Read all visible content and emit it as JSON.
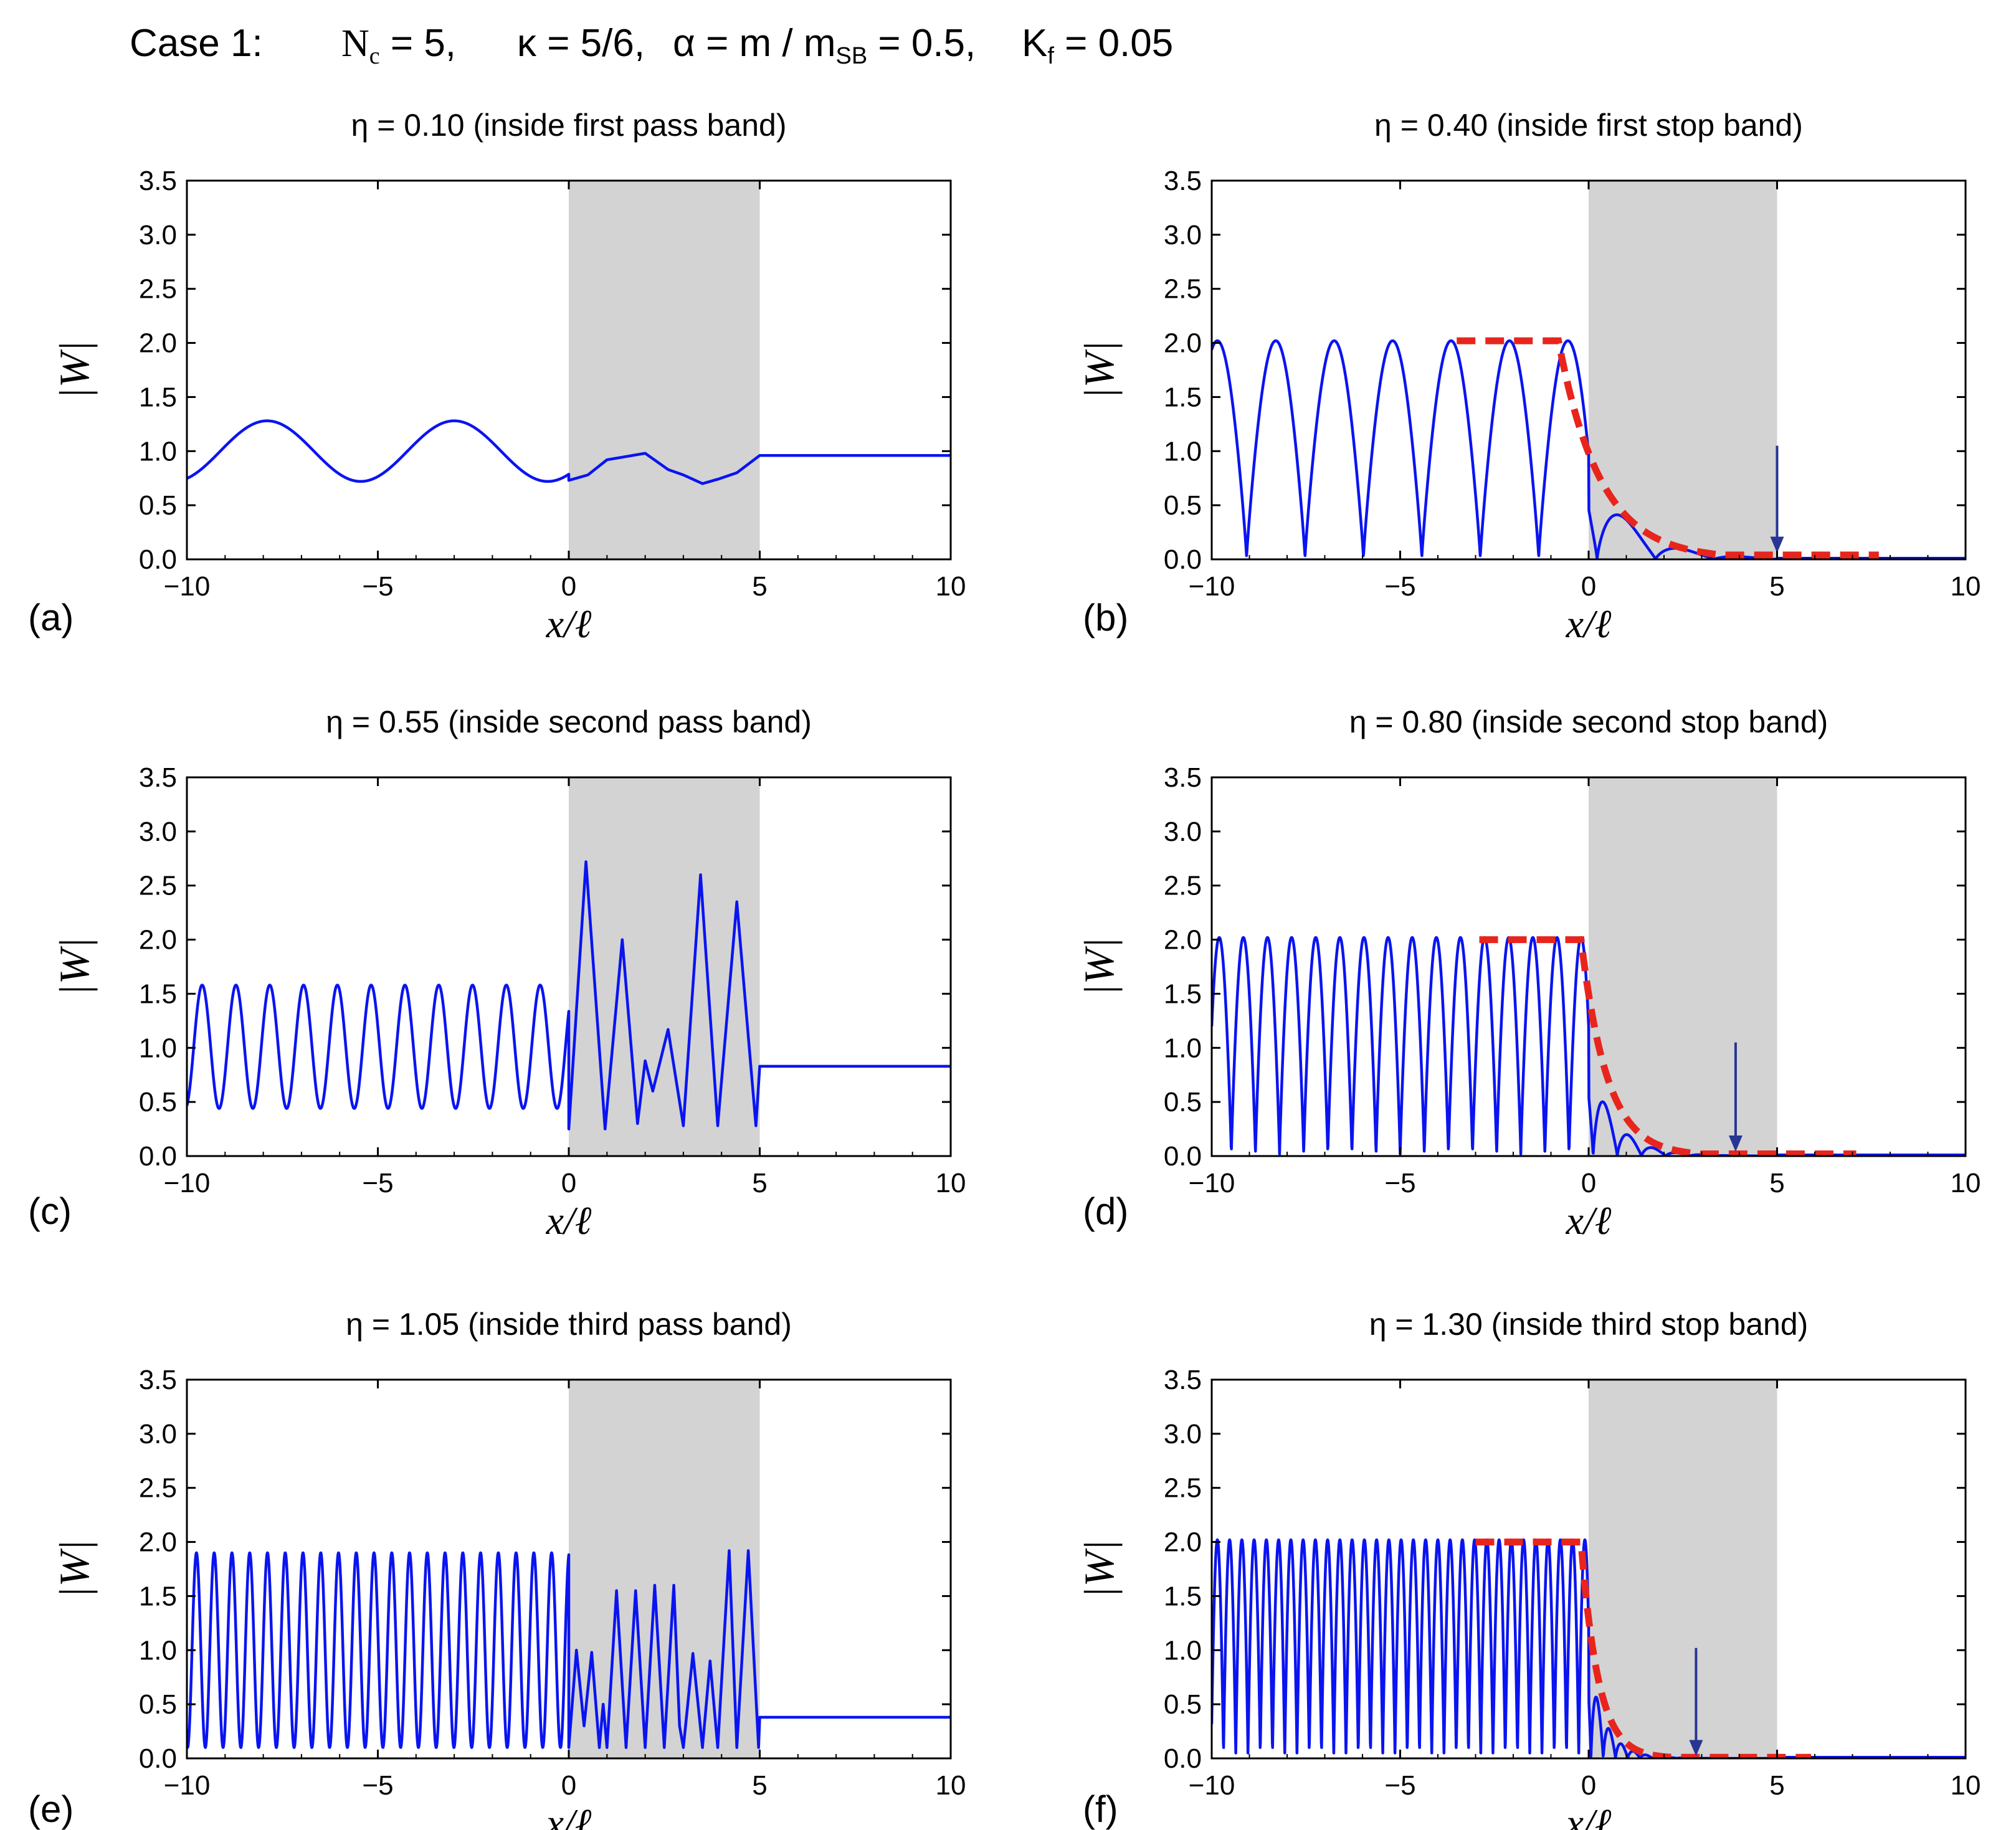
{
  "figure": {
    "case_label": "Case 1:",
    "params": {
      "Nc": {
        "sym": "N",
        "sub": "c",
        "val": " = 5,"
      },
      "kappa": {
        "text": "κ = 5/6,"
      },
      "alpha": {
        "pre": "α = m / m",
        "sub": "SB",
        "val": " = 0.5,"
      },
      "Kf": {
        "sym": "K",
        "sub": "f",
        "val": " = 0.05"
      }
    }
  },
  "colors": {
    "curve": "#0a14f0",
    "envelope": "#e8251d",
    "arrow": "#283593",
    "shade": "#d3d3d3",
    "frame": "#000000"
  },
  "chart_data": [
    {
      "id": "a",
      "type": "line",
      "panel_label": "(a)",
      "title": "η = 0.10 (inside first pass band)",
      "xlabel": "x/ℓ",
      "ylabel": "|W|",
      "xlim": [
        -10,
        10
      ],
      "ylim": [
        0,
        3.5
      ],
      "xticks": [
        -10,
        -5,
        0,
        5,
        10
      ],
      "xtick_labels": [
        "−10",
        "−5",
        "0",
        "5",
        "10"
      ],
      "yticks": [
        0,
        0.5,
        1,
        1.5,
        2,
        2.5,
        3,
        3.5
      ],
      "ytick_labels": [
        "0.0",
        "0.5",
        "1.0",
        "1.5",
        "2.0",
        "2.5",
        "3.0",
        "3.5"
      ],
      "shaded_region": [
        0,
        5
      ],
      "series": [
        {
          "name": "|W|",
          "kind": "left_sin",
          "x_range": [
            -10,
            0
          ],
          "mean": 1.0,
          "amplitude": 0.28,
          "peak_spacing": 4.9,
          "first_peak": -7.9,
          "right_points": [
            [
              0,
              0.73
            ],
            [
              0.5,
              0.78
            ],
            [
              1.0,
              0.92
            ],
            [
              2.0,
              0.98
            ],
            [
              2.6,
              0.83
            ],
            [
              3.0,
              0.78
            ],
            [
              3.5,
              0.7
            ],
            [
              3.9,
              0.74
            ],
            [
              4.4,
              0.8
            ],
            [
              5.0,
              0.96
            ],
            [
              10,
              0.96
            ]
          ]
        }
      ],
      "envelope": null,
      "arrow": null
    },
    {
      "id": "b",
      "type": "line",
      "panel_label": "(b)",
      "title": "η = 0.40 (inside first stop band)",
      "xlabel": "x/ℓ",
      "ylabel": "|W|",
      "xlim": [
        -10,
        10
      ],
      "ylim": [
        0,
        3.5
      ],
      "xticks": [
        -10,
        -5,
        0,
        5,
        10
      ],
      "xtick_labels": [
        "−10",
        "−5",
        "0",
        "5",
        "10"
      ],
      "yticks": [
        0,
        0.5,
        1,
        1.5,
        2,
        2.5,
        3,
        3.5
      ],
      "ytick_labels": [
        "0.0",
        "0.5",
        "1.0",
        "1.5",
        "2.0",
        "2.5",
        "3.0",
        "3.5"
      ],
      "shaded_region": [
        0,
        5
      ],
      "series": [
        {
          "name": "|W|",
          "kind": "stop_band",
          "x_range": [
            -10,
            10
          ],
          "peak": 2.0,
          "period": 1.55,
          "phase_x": -0.55,
          "decay_rate": 0.9
        }
      ],
      "envelope": {
        "x_flat": [
          -3.5,
          -0.8
        ],
        "level": 2.02,
        "decay_rate": 0.9,
        "x_end": 7.7,
        "tail": 0.04
      },
      "arrow": {
        "x": 5.0,
        "y_top": 1.05,
        "y_bottom": 0.06
      }
    },
    {
      "id": "c",
      "type": "line",
      "panel_label": "(c)",
      "title": "η = 0.55 (inside second pass band)",
      "xlabel": "x/ℓ",
      "ylabel": "|W|",
      "xlim": [
        -10,
        10
      ],
      "ylim": [
        0,
        3.5
      ],
      "xticks": [
        -10,
        -5,
        0,
        5,
        10
      ],
      "xtick_labels": [
        "−10",
        "−5",
        "0",
        "5",
        "10"
      ],
      "yticks": [
        0,
        0.5,
        1,
        1.5,
        2,
        2.5,
        3,
        3.5
      ],
      "ytick_labels": [
        "0.0",
        "0.5",
        "1.0",
        "1.5",
        "2.0",
        "2.5",
        "3.0",
        "3.5"
      ],
      "shaded_region": [
        0,
        5
      ],
      "series": [
        {
          "name": "|W|",
          "kind": "left_sin",
          "x_range": [
            -10,
            0
          ],
          "mean": 1.01,
          "amplitude": 0.57,
          "peak_spacing": 0.885,
          "first_peak": -9.6,
          "right_points": [
            [
              0,
              0.25
            ],
            [
              0.45,
              2.72
            ],
            [
              0.95,
              0.25
            ],
            [
              1.4,
              2.0
            ],
            [
              1.8,
              0.3
            ],
            [
              2.0,
              0.88
            ],
            [
              2.2,
              0.6
            ],
            [
              2.6,
              1.17
            ],
            [
              3.0,
              0.28
            ],
            [
              3.45,
              2.6
            ],
            [
              3.9,
              0.28
            ],
            [
              4.4,
              2.35
            ],
            [
              4.9,
              0.28
            ],
            [
              5.0,
              0.83
            ],
            [
              10,
              0.83
            ]
          ]
        }
      ],
      "envelope": null,
      "arrow": null
    },
    {
      "id": "d",
      "type": "line",
      "panel_label": "(d)",
      "title": "η = 0.80 (inside second stop band)",
      "xlabel": "x/ℓ",
      "ylabel": "|W|",
      "xlim": [
        -10,
        10
      ],
      "ylim": [
        0,
        3.5
      ],
      "xticks": [
        -10,
        -5,
        0,
        5,
        10
      ],
      "xtick_labels": [
        "−10",
        "−5",
        "0",
        "5",
        "10"
      ],
      "yticks": [
        0,
        0.5,
        1,
        1.5,
        2,
        2.5,
        3,
        3.5
      ],
      "ytick_labels": [
        "0.0",
        "0.5",
        "1.0",
        "1.5",
        "2.0",
        "2.5",
        "3.0",
        "3.5"
      ],
      "shaded_region": [
        0,
        5
      ],
      "series": [
        {
          "name": "|W|",
          "kind": "stop_band",
          "x_range": [
            -10,
            10
          ],
          "peak": 2.0,
          "period": 0.64,
          "phase_x": -0.2,
          "decay_rate": 1.45
        }
      ],
      "envelope": {
        "x_flat": [
          -2.9,
          -0.2
        ],
        "level": 2.0,
        "decay_rate": 1.45,
        "x_end": 7.1,
        "tail": 0.02
      },
      "arrow": {
        "x": 3.9,
        "y_top": 1.05,
        "y_bottom": 0.04
      }
    },
    {
      "id": "e",
      "type": "line",
      "panel_label": "(e)",
      "title": "η = 1.05 (inside third pass band)",
      "xlabel": "x/ℓ",
      "ylabel": "|W|",
      "xlim": [
        -10,
        10
      ],
      "ylim": [
        0,
        3.5
      ],
      "xticks": [
        -10,
        -5,
        0,
        5,
        10
      ],
      "xtick_labels": [
        "−10",
        "−5",
        "0",
        "5",
        "10"
      ],
      "yticks": [
        0,
        0.5,
        1,
        1.5,
        2,
        2.5,
        3,
        3.5
      ],
      "ytick_labels": [
        "0.0",
        "0.5",
        "1.0",
        "1.5",
        "2.0",
        "2.5",
        "3.0",
        "3.5"
      ],
      "shaded_region": [
        0,
        5
      ],
      "series": [
        {
          "name": "|W|",
          "kind": "left_sin",
          "x_range": [
            -10,
            0
          ],
          "mean": 1.0,
          "amplitude": 0.9,
          "peak_spacing": 0.465,
          "first_peak": -9.75,
          "right_points": [
            [
              0,
              0.1
            ],
            [
              0.2,
              1.0
            ],
            [
              0.4,
              0.3
            ],
            [
              0.6,
              0.98
            ],
            [
              0.8,
              0.1
            ],
            [
              0.9,
              0.5
            ],
            [
              1.0,
              0.1
            ],
            [
              1.25,
              1.55
            ],
            [
              1.5,
              0.1
            ],
            [
              1.75,
              1.55
            ],
            [
              2.0,
              0.1
            ],
            [
              2.25,
              1.6
            ],
            [
              2.5,
              0.1
            ],
            [
              2.75,
              1.6
            ],
            [
              2.9,
              0.3
            ],
            [
              3.0,
              0.1
            ],
            [
              3.25,
              0.97
            ],
            [
              3.5,
              0.1
            ],
            [
              3.7,
              0.9
            ],
            [
              3.9,
              0.1
            ],
            [
              4.2,
              1.92
            ],
            [
              4.4,
              0.1
            ],
            [
              4.7,
              1.92
            ],
            [
              4.97,
              0.1
            ],
            [
              5.0,
              0.38
            ],
            [
              10,
              0.38
            ]
          ]
        }
      ],
      "envelope": null,
      "arrow": null
    },
    {
      "id": "f",
      "type": "line",
      "panel_label": "(f)",
      "title": "η = 1.30 (inside third stop band)",
      "xlabel": "x/ℓ",
      "ylabel": "|W|",
      "xlim": [
        -10,
        10
      ],
      "ylim": [
        0,
        3.5
      ],
      "xticks": [
        -10,
        -5,
        0,
        5,
        10
      ],
      "xtick_labels": [
        "−10",
        "−5",
        "0",
        "5",
        "10"
      ],
      "yticks": [
        0,
        0.5,
        1,
        1.5,
        2,
        2.5,
        3,
        3.5
      ],
      "ytick_labels": [
        "0.0",
        "0.5",
        "1.0",
        "1.5",
        "2.0",
        "2.5",
        "3.0",
        "3.5"
      ],
      "shaded_region": [
        0,
        5
      ],
      "series": [
        {
          "name": "|W|",
          "kind": "stop_band",
          "x_range": [
            -10,
            10
          ],
          "peak": 2.0,
          "period": 0.325,
          "phase_x": -0.1,
          "decay_rate": 2.2
        }
      ],
      "envelope": {
        "x_flat": [
          -3.0,
          -0.2
        ],
        "level": 2.0,
        "decay_rate": 2.2,
        "x_end": 5.9,
        "tail": 0.01
      },
      "arrow": {
        "x": 2.85,
        "y_top": 1.02,
        "y_bottom": 0.02
      }
    }
  ]
}
